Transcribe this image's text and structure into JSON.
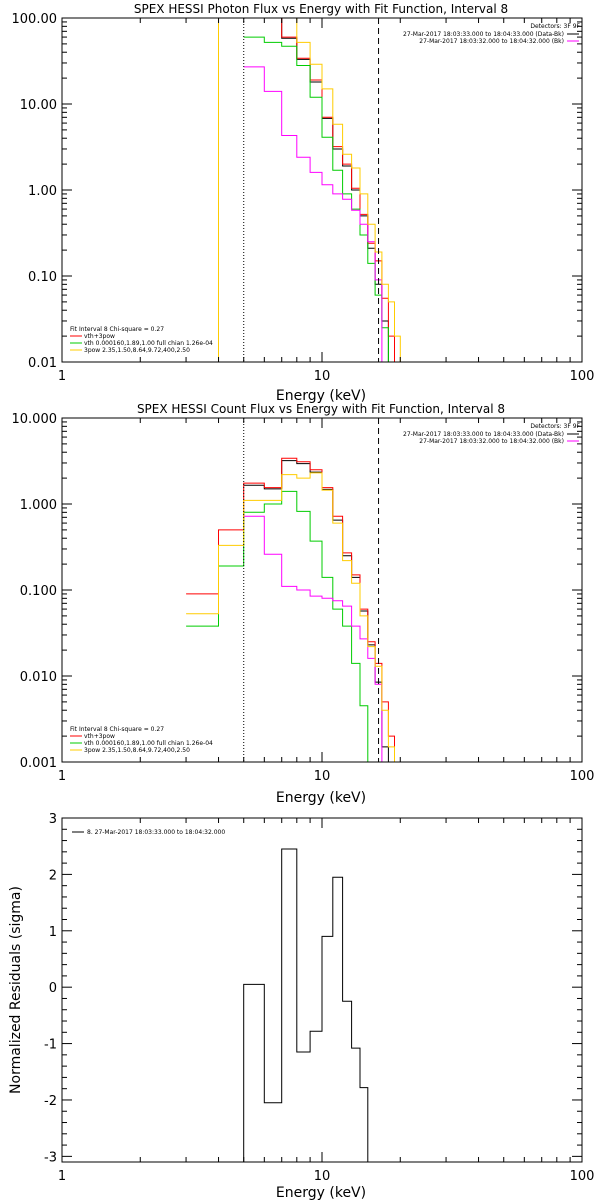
{
  "chart_data": [
    {
      "type": "line",
      "title": "SPEX HESSI Photon Flux vs Energy with Fit Function, Interval 8",
      "xlabel": "Energy (keV)",
      "ylabel": "",
      "xscale": "log",
      "yscale": "log",
      "xlim": [
        1,
        100
      ],
      "ylim": [
        0.01,
        100
      ],
      "yticks": [
        0.01,
        0.1,
        1,
        10,
        100
      ],
      "ytick_labels": [
        "0.01",
        "0.10",
        "1.00",
        "10.00",
        "100.00"
      ],
      "xticks": [
        1,
        10,
        100
      ],
      "xtick_labels": [
        "1",
        "10",
        "100"
      ],
      "legend_top": {
        "title": "Detectors: 3F 9F",
        "lines": [
          {
            "text": "27-Mar-2017 18:03:33.000 to 18:04:33.000 (Data-Bk)",
            "color": "#000000"
          },
          {
            "text": "27-Mar-2017 18:03:32.000 to 18:04:32.000 (Bk)",
            "color": "#ff00ff"
          }
        ]
      },
      "legend_bottom": {
        "title": "Fit Interval 8   Chi-square = 0.27",
        "lines": [
          {
            "text": "vth+3pow",
            "color": "#ff0000"
          },
          {
            "text": "vth 0.000160,1.89,1.00  full chian 1.26e-04",
            "color": "#00cc00"
          },
          {
            "text": "3pow 2.35,1.50,8.64,9.72,400,2.50",
            "color": "#ffcc00"
          }
        ]
      },
      "vlines": [
        {
          "x": 5.0,
          "style": "dotted",
          "color": "#000000"
        },
        {
          "x": 16.5,
          "style": "dashed",
          "color": "#000000"
        }
      ],
      "bin_edges": [
        3,
        4,
        5,
        6,
        7,
        8,
        9,
        10,
        11,
        12,
        13,
        14,
        15,
        16,
        17,
        18,
        19,
        20
      ],
      "series": [
        {
          "color": "#000000",
          "start": 5,
          "values": [
            110,
            100,
            58,
            33,
            18,
            6.8,
            3.0,
            1.9,
            1.0,
            0.5,
            0.21,
            0.08,
            0.03
          ]
        },
        {
          "color": "#ff0000",
          "start": 5,
          "values": [
            110,
            100,
            60,
            34,
            19,
            7.0,
            3.2,
            2.0,
            1.05,
            0.52,
            0.24,
            0.15,
            0.055,
            0.02
          ]
        },
        {
          "color": "#00cc00",
          "start": 5,
          "values": [
            60,
            52,
            47,
            28,
            12,
            4.1,
            1.7,
            0.9,
            0.6,
            0.3,
            0.14,
            0.06,
            0.025
          ]
        },
        {
          "color": "#ff00ff",
          "start": 5,
          "values": [
            27,
            14,
            4.3,
            2.4,
            1.6,
            1.15,
            0.9,
            0.78,
            0.58,
            0.4,
            0.25,
            0.09
          ]
        },
        {
          "color": "#ffcc00",
          "start": 3,
          "values": [
            0.0001,
            200,
            150,
            100,
            100,
            52,
            29,
            15,
            5.8,
            2.6,
            1.8,
            0.9,
            0.4,
            0.19,
            0.08,
            0.05,
            0.02
          ]
        }
      ]
    },
    {
      "type": "line",
      "title": "SPEX HESSI Count Flux vs Energy with Fit Function, Interval 8",
      "xlabel": "Energy (keV)",
      "ylabel": "",
      "xscale": "log",
      "yscale": "log",
      "xlim": [
        1,
        100
      ],
      "ylim": [
        0.001,
        10
      ],
      "yticks": [
        0.001,
        0.01,
        0.1,
        1,
        10
      ],
      "ytick_labels": [
        "0.001",
        "0.010",
        "0.100",
        "1.000",
        "10.000"
      ],
      "xticks": [
        1,
        10,
        100
      ],
      "xtick_labels": [
        "1",
        "10",
        "100"
      ],
      "legend_top": {
        "title": "Detectors: 3F 9F",
        "lines": [
          {
            "text": "27-Mar-2017 18:03:33.000 to 18:04:33.000 (Data-Bk)",
            "color": "#000000"
          },
          {
            "text": "27-Mar-2017 18:03:32.000 to 18:04:32.000 (Bk)",
            "color": "#ff00ff"
          }
        ]
      },
      "legend_bottom": {
        "title": "Fit Interval 8   Chi-square = 0.27",
        "lines": [
          {
            "text": "vth+3pow",
            "color": "#ff0000"
          },
          {
            "text": "vth 0.000160,1.89,1.00  full chian 1.26e-04",
            "color": "#00cc00"
          },
          {
            "text": "3pow 2.35,1.50,8.64,9.72,400,2.50",
            "color": "#ffcc00"
          }
        ]
      },
      "vlines": [
        {
          "x": 5.0,
          "style": "dotted",
          "color": "#000000"
        },
        {
          "x": 16.5,
          "style": "dashed",
          "color": "#000000"
        }
      ],
      "bin_edges": [
        3,
        4,
        5,
        6,
        7,
        8,
        9,
        10,
        11,
        12,
        13,
        14,
        15,
        16,
        17,
        18,
        19,
        20
      ],
      "series": [
        {
          "color": "#000000",
          "start": 5,
          "values": [
            1.65,
            1.5,
            3.2,
            2.95,
            2.35,
            1.48,
            0.65,
            0.25,
            0.14,
            0.057,
            0.023,
            0.0085,
            0.0015
          ]
        },
        {
          "color": "#ff0000",
          "start": 3,
          "values": [
            0.09,
            0.5,
            1.75,
            1.55,
            3.4,
            3.1,
            2.5,
            1.55,
            0.72,
            0.27,
            0.15,
            0.06,
            0.025,
            0.014,
            0.005,
            0.002
          ]
        },
        {
          "color": "#00cc00",
          "start": 3,
          "values": [
            0.038,
            0.19,
            0.8,
            1.0,
            1.4,
            0.82,
            0.37,
            0.14,
            0.06,
            0.038,
            0.014,
            0.0045,
            0.0009
          ]
        },
        {
          "color": "#ff00ff",
          "start": 5,
          "values": [
            0.72,
            0.26,
            0.11,
            0.1,
            0.085,
            0.08,
            0.075,
            0.065,
            0.038,
            0.027,
            0.016,
            0.008
          ]
        },
        {
          "color": "#ffcc00",
          "start": 3,
          "values": [
            0.053,
            0.33,
            1.1,
            1.1,
            2.2,
            2.0,
            2.3,
            1.45,
            0.6,
            0.22,
            0.12,
            0.05,
            0.022,
            0.013,
            0.004,
            0.0015
          ]
        }
      ]
    },
    {
      "type": "line",
      "title": "",
      "xlabel": "Energy (keV)",
      "ylabel": "Normalized Residuals (sigma)",
      "xscale": "log",
      "yscale": "linear",
      "xlim": [
        1,
        100
      ],
      "ylim": [
        -3.1,
        3
      ],
      "yticks": [
        -3,
        -2,
        -1,
        0,
        1,
        2,
        3
      ],
      "ytick_labels": [
        "-3",
        "-2",
        "-1",
        "0",
        "1",
        "2",
        "3"
      ],
      "xticks": [
        1,
        10,
        100
      ],
      "xtick_labels": [
        "1",
        "10",
        "100"
      ],
      "legend_top": {
        "title": "",
        "lines": [
          {
            "text": "8. 27-Mar-2017 18:03:33.000 to 18:04:32.000",
            "color": "#000000"
          }
        ]
      },
      "vlines": [],
      "bin_edges": [
        3,
        4,
        5,
        6,
        7,
        8,
        9,
        10,
        11,
        12,
        13,
        14,
        15,
        16,
        17,
        18,
        19,
        20
      ],
      "series": [
        {
          "color": "#000000",
          "start": 5,
          "values": [
            0.05,
            -2.05,
            2.45,
            -1.15,
            -0.78,
            0.9,
            1.95,
            -0.25,
            -1.08,
            -1.78
          ],
          "fromBottom": true
        }
      ]
    }
  ]
}
